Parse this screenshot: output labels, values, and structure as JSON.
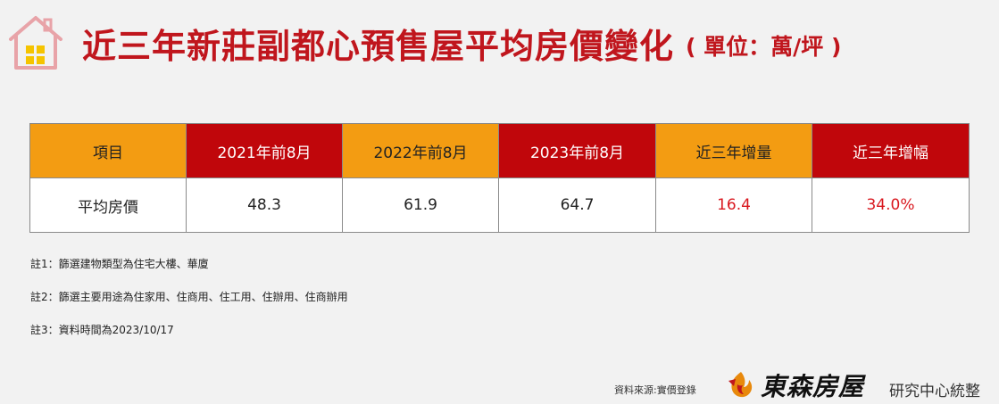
{
  "header": {
    "title": "近三年新莊副都心預售屋平均房價變化",
    "unit": "( 單位：萬/坪 )",
    "colors": {
      "title": "#c0161d",
      "icon_outline": "#e8a3a8",
      "icon_window": "#f5c400"
    }
  },
  "table": {
    "headers": [
      "項目",
      "2021年前8月",
      "2022年前8月",
      "2023年前8月",
      "近三年增量",
      "近三年增幅"
    ],
    "rows": [
      [
        "平均房價",
        "48.3",
        "61.9",
        "64.7",
        "16.4",
        "34.0%"
      ]
    ],
    "colors": {
      "orange": "#f39c12",
      "red": "#c0060b",
      "accent_text": "#d9181f"
    }
  },
  "notes": [
    "註1：篩選建物類型為住宅大樓、華廈",
    "註2：篩選主要用途為住家用、住商用、住工用、住辦用、住商辦用",
    "註3：資料時間為2023/10/17"
  ],
  "footer": {
    "source": "資料來源:實價登錄",
    "brand": "東森房屋",
    "brand_sub": "研究中心統整",
    "logo_icon": "ettoday-flame-logo-icon"
  }
}
